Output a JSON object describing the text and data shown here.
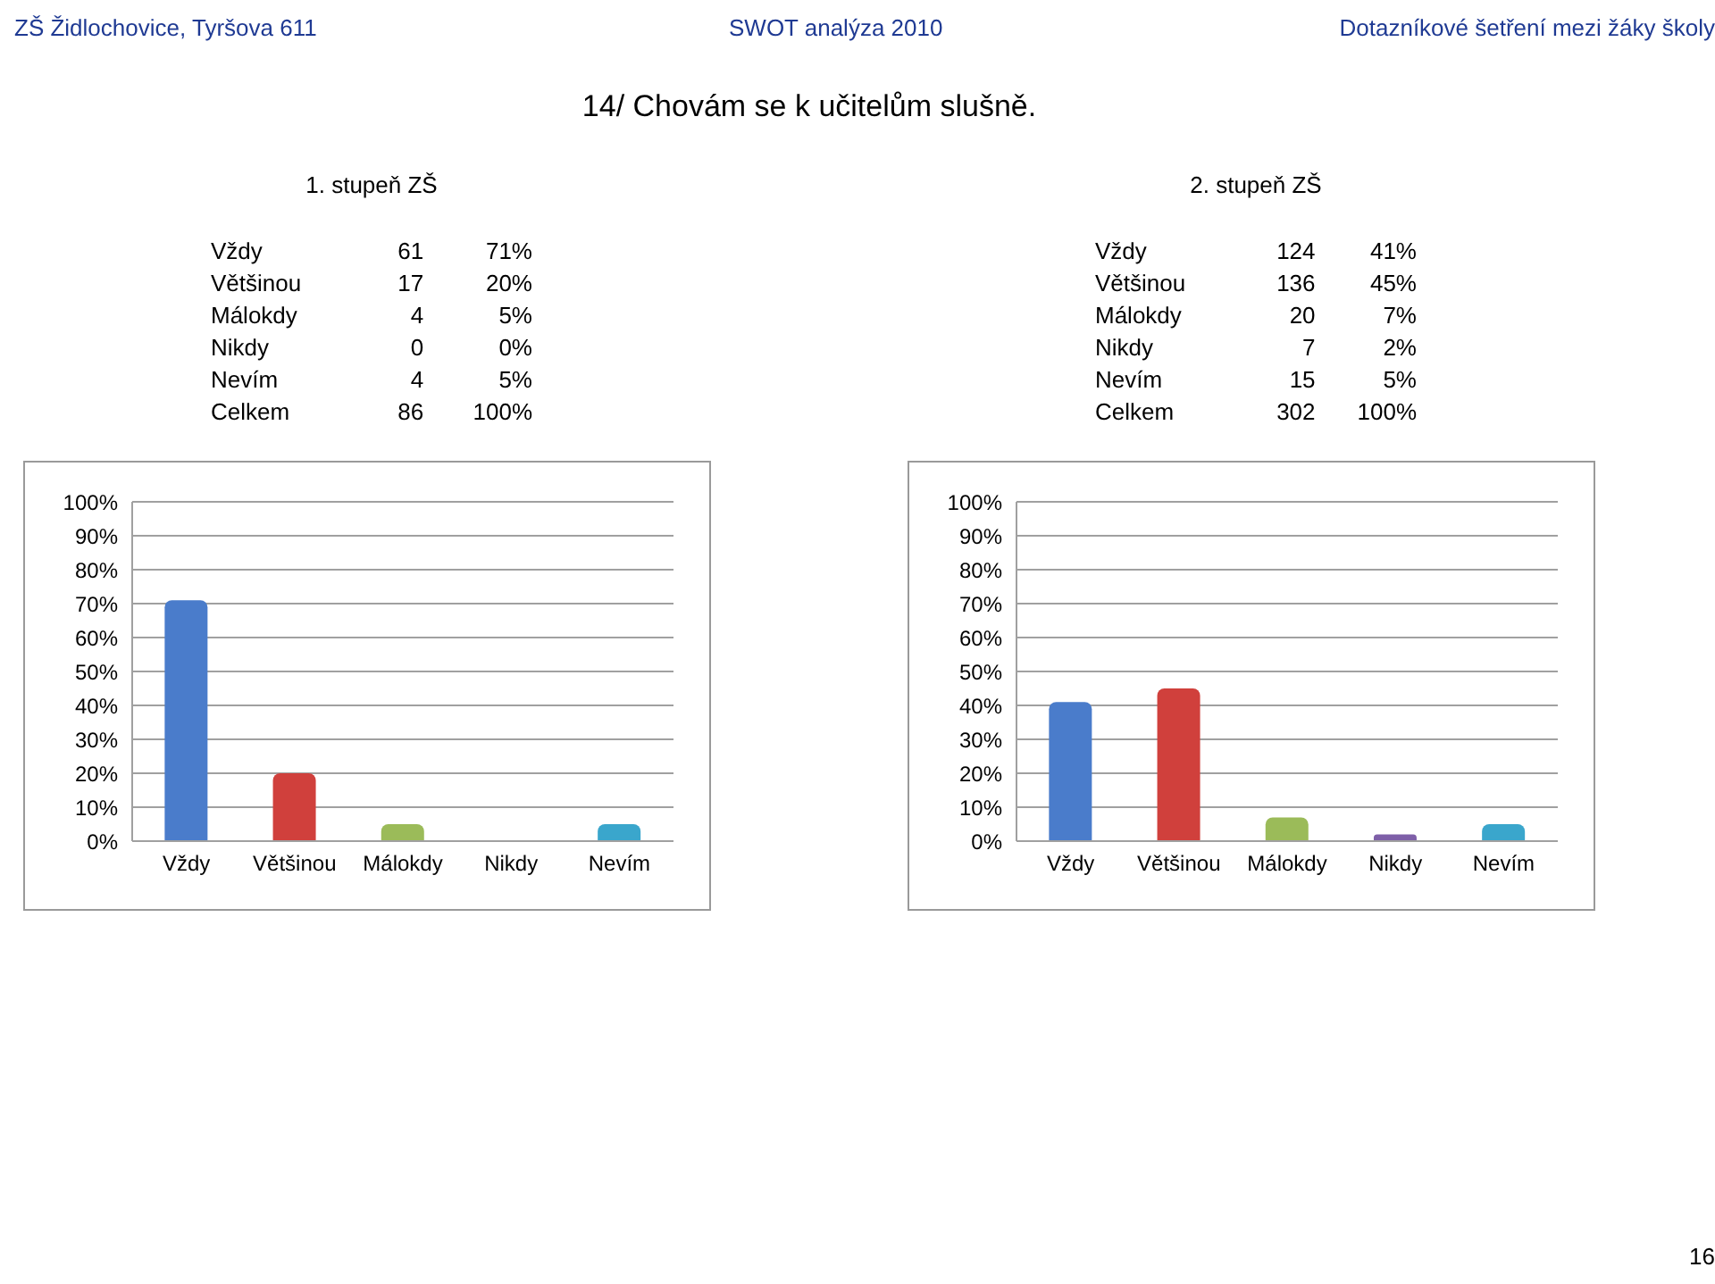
{
  "chart_data": [
    {
      "type": "other",
      "title": "14/ Chovám se k učitelům slušně.",
      "annotations": [
        "ZŠ Židlochovice, Tyršova 611",
        "SWOT analýza 2010",
        "Dotazníkové šetření mezi žáky školy",
        "16"
      ]
    },
    {
      "type": "other",
      "title": "1. stupeň ZŠ",
      "data_labels": true,
      "categories": [
        "Vždy",
        "Většinou",
        "Málokdy",
        "Nikdy",
        "Nevím",
        "Celkem"
      ],
      "series": [
        {
          "values": [
            61,
            17,
            4,
            0,
            4,
            86
          ]
        },
        {
          "values": [
            71,
            20,
            5,
            0,
            5,
            100
          ],
          "value_labels": [
            "71%",
            "20%",
            "5%",
            "0%",
            "5%",
            "100%"
          ]
        }
      ]
    },
    {
      "type": "other",
      "title": "2. stupeň ZŠ",
      "data_labels": true,
      "categories": [
        "Vždy",
        "Většinou",
        "Málokdy",
        "Nikdy",
        "Nevím",
        "Celkem"
      ],
      "series": [
        {
          "values": [
            124,
            136,
            20,
            7,
            15,
            302
          ]
        },
        {
          "values": [
            41,
            45,
            7,
            2,
            5,
            100
          ],
          "value_labels": [
            "41%",
            "45%",
            "7%",
            "2%",
            "5%",
            "100%"
          ]
        }
      ]
    },
    {
      "type": "bar",
      "categories": [
        "Vždy",
        "Většinou",
        "Málokdy",
        "Nikdy",
        "Nevím"
      ],
      "values": [
        71,
        20,
        5,
        0,
        5
      ],
      "colors": [
        "#4a7ccb",
        "#d0403c",
        "#9bbb59",
        "#7e5fa8",
        "#3aa6cc"
      ],
      "ylim": [
        0,
        100
      ],
      "yticks": [
        {
          "value": 0,
          "label": "0%"
        },
        {
          "value": 10,
          "label": "10%"
        },
        {
          "value": 20,
          "label": "20%"
        },
        {
          "value": 30,
          "label": "30%"
        },
        {
          "value": 40,
          "label": "40%"
        },
        {
          "value": 50,
          "label": "50%"
        },
        {
          "value": 60,
          "label": "60%"
        },
        {
          "value": 70,
          "label": "70%"
        },
        {
          "value": 80,
          "label": "80%"
        },
        {
          "value": 90,
          "label": "90%"
        },
        {
          "value": 100,
          "label": "100%"
        }
      ],
      "grid": "y",
      "legend": false
    },
    {
      "type": "bar",
      "categories": [
        "Vždy",
        "Většinou",
        "Málokdy",
        "Nikdy",
        "Nevím"
      ],
      "values": [
        41,
        45,
        7,
        2,
        5
      ],
      "colors": [
        "#4a7ccb",
        "#d0403c",
        "#9bbb59",
        "#7e5fa8",
        "#3aa6cc"
      ],
      "ylim": [
        0,
        100
      ],
      "yticks": [
        {
          "value": 0,
          "label": "0%"
        },
        {
          "value": 10,
          "label": "10%"
        },
        {
          "value": 20,
          "label": "20%"
        },
        {
          "value": 30,
          "label": "30%"
        },
        {
          "value": 40,
          "label": "40%"
        },
        {
          "value": 50,
          "label": "50%"
        },
        {
          "value": 60,
          "label": "60%"
        },
        {
          "value": 70,
          "label": "70%"
        },
        {
          "value": 80,
          "label": "80%"
        },
        {
          "value": 90,
          "label": "90%"
        },
        {
          "value": 100,
          "label": "100%"
        }
      ],
      "grid": "y",
      "legend": false
    }
  ]
}
